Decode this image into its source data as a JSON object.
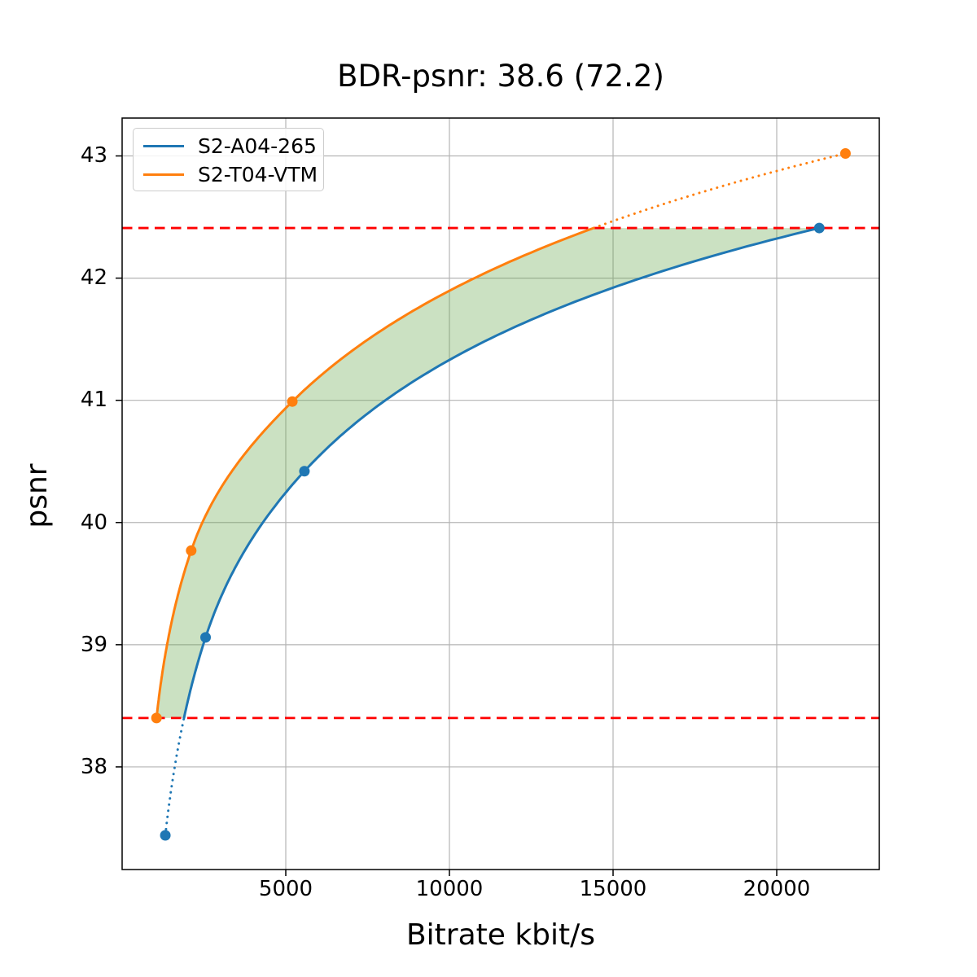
{
  "chart_data": {
    "type": "line",
    "title": "BDR-psnr: 38.6 (72.2)",
    "xlabel": "Bitrate kbit/s",
    "ylabel": "psnr",
    "xlim": [
      0,
      23134
    ],
    "ylim": [
      37.16,
      43.31
    ],
    "xticks": [
      5000,
      10000,
      15000,
      20000
    ],
    "xtick_labels": [
      "5000",
      "10000",
      "15000",
      "20000"
    ],
    "yticks": [
      43,
      42,
      41,
      40,
      39,
      38
    ],
    "ytick_labels": [
      "43",
      "42",
      "41",
      "40",
      "39",
      "38"
    ],
    "grid": true,
    "grid_color": "#b4b4b4",
    "legend_position": "upper-left",
    "interpolation": "pchip-log10-rate-vs-psnr",
    "series": [
      {
        "name": "S2-A04-265",
        "color": "#1f77b4",
        "x": [
          1320,
          2550,
          5570,
          21300
        ],
        "y": [
          37.44,
          39.06,
          40.42,
          42.41
        ],
        "solid_psnr_range": [
          38.4,
          42.41
        ],
        "dotted_psnr_range": [
          37.44,
          38.4
        ]
      },
      {
        "name": "S2-T04-VTM",
        "color": "#ff7f0e",
        "x": [
          1050,
          2110,
          5200,
          22100
        ],
        "y": [
          38.4,
          39.77,
          40.99,
          43.02
        ],
        "solid_psnr_range": [
          38.4,
          42.41
        ],
        "dotted_psnr_range": [
          42.41,
          43.02
        ]
      }
    ],
    "hlines": {
      "values": [
        38.4,
        42.41
      ],
      "color": "#ff0000",
      "style": "dashed"
    },
    "overlap_region": {
      "psnr_range": [
        38.4,
        42.41
      ],
      "fill": "#6aa84f",
      "opacity": 0.35
    }
  }
}
